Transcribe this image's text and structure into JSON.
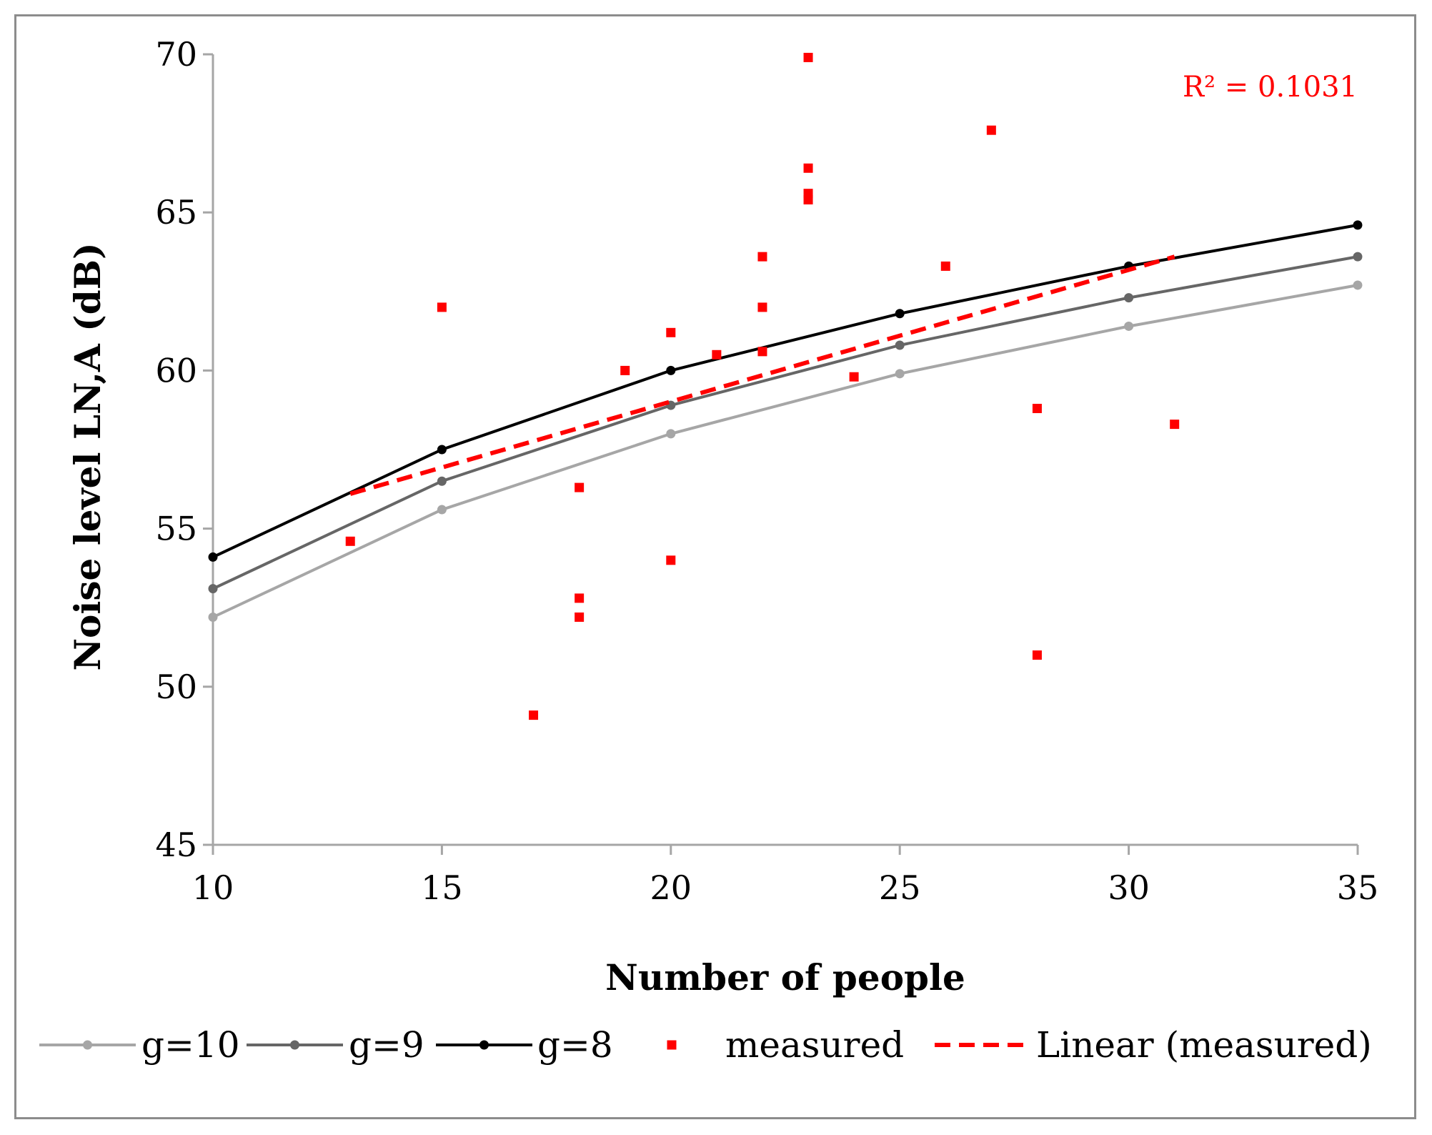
{
  "chart_data": {
    "type": "line",
    "title": "",
    "xlabel": "Number of people",
    "ylabel": "Noise level LN,A (dB)",
    "xlim": [
      10,
      35
    ],
    "ylim": [
      45,
      70
    ],
    "x_ticks": [
      "10",
      "15",
      "20",
      "25",
      "30",
      "35"
    ],
    "y_ticks": [
      "45",
      "50",
      "55",
      "60",
      "65",
      "70"
    ],
    "series": [
      {
        "name": "g=10",
        "color": "#a6a6a6",
        "x": [
          10,
          15,
          20,
          25,
          30,
          35
        ],
        "y": [
          52.2,
          55.6,
          58.0,
          59.9,
          61.4,
          62.7
        ]
      },
      {
        "name": "g=9",
        "color": "#666666",
        "x": [
          10,
          15,
          20,
          25,
          30,
          35
        ],
        "y": [
          53.1,
          56.5,
          58.9,
          60.8,
          62.3,
          63.6
        ]
      },
      {
        "name": "g=8",
        "color": "#000000",
        "x": [
          10,
          15,
          20,
          25,
          30,
          35
        ],
        "y": [
          54.1,
          57.5,
          60.0,
          61.8,
          63.3,
          64.6
        ]
      }
    ],
    "measured": {
      "name": "measured",
      "color": "#ff0000",
      "points": [
        [
          13,
          54.6
        ],
        [
          15,
          62.0
        ],
        [
          17,
          49.1
        ],
        [
          18,
          56.3
        ],
        [
          18,
          52.8
        ],
        [
          18,
          52.2
        ],
        [
          19,
          60.0
        ],
        [
          20,
          61.2
        ],
        [
          20,
          54.0
        ],
        [
          21,
          60.5
        ],
        [
          22,
          63.6
        ],
        [
          22,
          62.0
        ],
        [
          22,
          60.6
        ],
        [
          23,
          69.9
        ],
        [
          23,
          66.4
        ],
        [
          23,
          65.6
        ],
        [
          23,
          65.4
        ],
        [
          24,
          59.8
        ],
        [
          26,
          63.3
        ],
        [
          27,
          67.6
        ],
        [
          28,
          58.8
        ],
        [
          28,
          51.0
        ],
        [
          31,
          58.3
        ]
      ]
    },
    "trendline": {
      "name": "Linear (measured)",
      "color": "#ff0000",
      "x": [
        13,
        31
      ],
      "y": [
        56.1,
        63.6
      ]
    },
    "annotation": "R² = 0.1031",
    "legend_position": "bottom"
  }
}
